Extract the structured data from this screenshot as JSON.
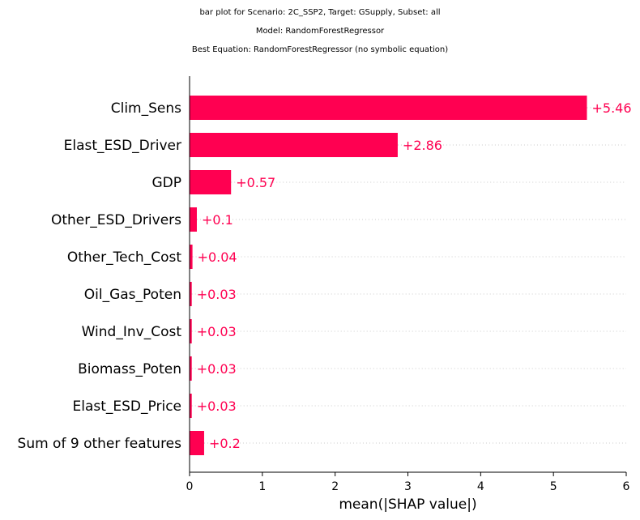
{
  "header": {
    "line1": "bar plot for Scenario: 2C_SSP2, Target: GSupply, Subset: all",
    "line2": "Model: RandomForestRegressor",
    "line3": "Best Equation: RandomForestRegressor (no symbolic equation)"
  },
  "colors": {
    "bar": "#ff0051",
    "label": "#ff0051",
    "grid": "#cccccc",
    "axis": "#000000"
  },
  "chart_data": {
    "type": "bar",
    "orientation": "horizontal",
    "categories": [
      "Clim_Sens",
      "Elast_ESD_Driver",
      "GDP",
      "Other_ESD_Drivers",
      "Other_Tech_Cost",
      "Oil_Gas_Poten",
      "Wind_Inv_Cost",
      "Biomass_Poten",
      "Elast_ESD_Price",
      "Sum of 9 other features"
    ],
    "values": [
      5.46,
      2.86,
      0.57,
      0.1,
      0.04,
      0.03,
      0.03,
      0.03,
      0.03,
      0.2
    ],
    "data_labels": [
      "+5.46",
      "+2.86",
      "+0.57",
      "+0.1",
      "+0.04",
      "+0.03",
      "+0.03",
      "+0.03",
      "+0.03",
      "+0.2"
    ],
    "xlabel": "mean(|SHAP value|)",
    "xlim": [
      0,
      6
    ],
    "xticks": [
      "0",
      "1",
      "2",
      "3",
      "4",
      "5",
      "6"
    ],
    "grid": "dotted horizontal row guides"
  }
}
